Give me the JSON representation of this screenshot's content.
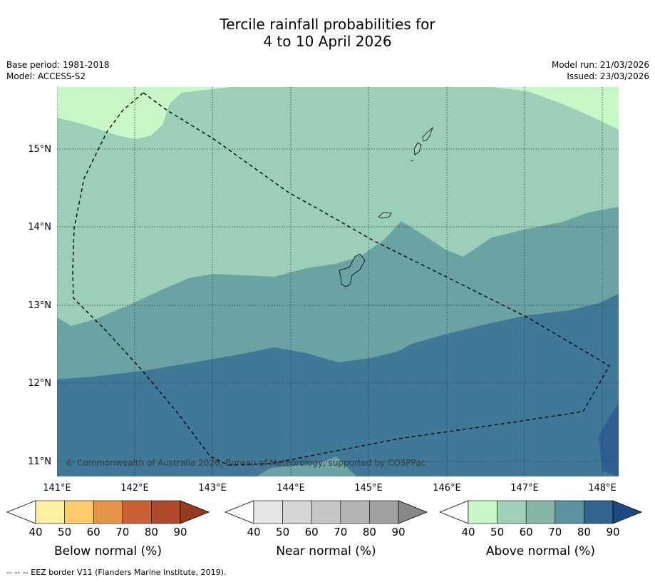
{
  "title": {
    "line1": "Tercile rainfall probabilities for",
    "line2": "4 to 10 April 2026"
  },
  "meta_left": {
    "base_period": "Base period: 1981-2018",
    "model": "Model: ACCESS-S2"
  },
  "meta_right": {
    "model_run": "Model run: 21/03/2026",
    "issued": "Issued: 23/03/2026"
  },
  "map": {
    "longitude_labels": [
      "141°E",
      "142°E",
      "143°E",
      "144°E",
      "145°E",
      "146°E",
      "147°E",
      "148°E"
    ],
    "latitude_labels": [
      "15°N",
      "14°N",
      "13°N",
      "12°N",
      "11°N"
    ],
    "copyright": "© Commonwealth of Australia 2026, Bureau of Meteorology, supported by COSPPac",
    "colors": {
      "above_50_60": "#9ccfb8",
      "above_40_50": "#c8f8c8",
      "above_60_70": "#6ba2a3",
      "above_70_80": "#407898",
      "above_80_90": "#2f5f92"
    }
  },
  "colorbars": [
    {
      "label": "Below normal (%)",
      "ticks": [
        "40",
        "50",
        "60",
        "70",
        "80",
        "90"
      ],
      "colors": [
        "#ffffff",
        "#fef0a3",
        "#fdcc68",
        "#e39448",
        "#cc6035",
        "#b04a28",
        "#963a20"
      ]
    },
    {
      "label": "Near normal (%)",
      "ticks": [
        "40",
        "50",
        "60",
        "70",
        "80",
        "90"
      ],
      "colors": [
        "#ffffff",
        "#e6e6e6",
        "#d6d6d6",
        "#c6c6c6",
        "#b3b3b3",
        "#a0a0a0",
        "#888888"
      ]
    },
    {
      "label": "Above normal (%)",
      "ticks": [
        "40",
        "50",
        "60",
        "70",
        "80",
        "90"
      ],
      "colors": [
        "#ffffff",
        "#c8f8c8",
        "#a0d2b8",
        "#84b7a8",
        "#5c92a0",
        "#32658f",
        "#1b4a80"
      ]
    }
  ],
  "footnote": "--  --  -- EEZ border V11 (Flanders Marine Institute, 2019)."
}
